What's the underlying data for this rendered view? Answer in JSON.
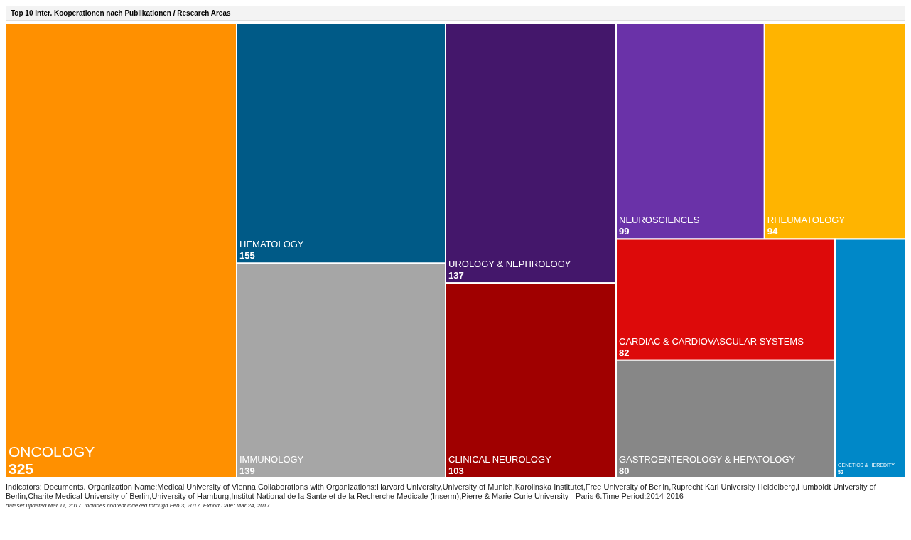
{
  "chart_data": {
    "type": "other",
    "title": "Top 10 Inter. Kooperationen nach Publikationen / Research Areas",
    "categories": [
      "ONCOLOGY",
      "HEMATOLOGY",
      "IMMUNOLOGY",
      "UROLOGY & NEPHROLOGY",
      "CLINICAL NEUROLOGY",
      "NEUROSCIENCES",
      "RHEUMATOLOGY",
      "CARDIAC & CARDIOVASCULAR SYSTEMS",
      "GASTROENTEROLOGY & HEPATOLOGY",
      "GENETICS & HEREDITY"
    ],
    "values": [
      325,
      155,
      139,
      137,
      103,
      99,
      94,
      82,
      80,
      52
    ],
    "colors": [
      "#ff9000",
      "#005a87",
      "#a6a6a6",
      "#44176b",
      "#a00000",
      "#6a32a8",
      "#ffb400",
      "#dd0a0a",
      "#878787",
      "#0088c8"
    ],
    "data_labels": true,
    "annotations": [
      "Indicators: Documents. Organization Name:Medical University of Vienna.Collaborations with Organizations:Harvard University,University of Munich,Karolinska Institutet,Free University of Berlin,Ruprecht Karl University Heidelberg,Humboldt University of Berlin,Charite Medical University of Berlin,University of Hamburg,Institut National de la Sante et de la Recherche Medicale (Inserm),Pierre & Marie Curie University - Paris 6.Time Period:2014-2016",
      "dataset updated Mar 11, 2017. Includes content indexed through Feb 3, 2017. Export Date: Mar 24, 2017."
    ]
  }
}
